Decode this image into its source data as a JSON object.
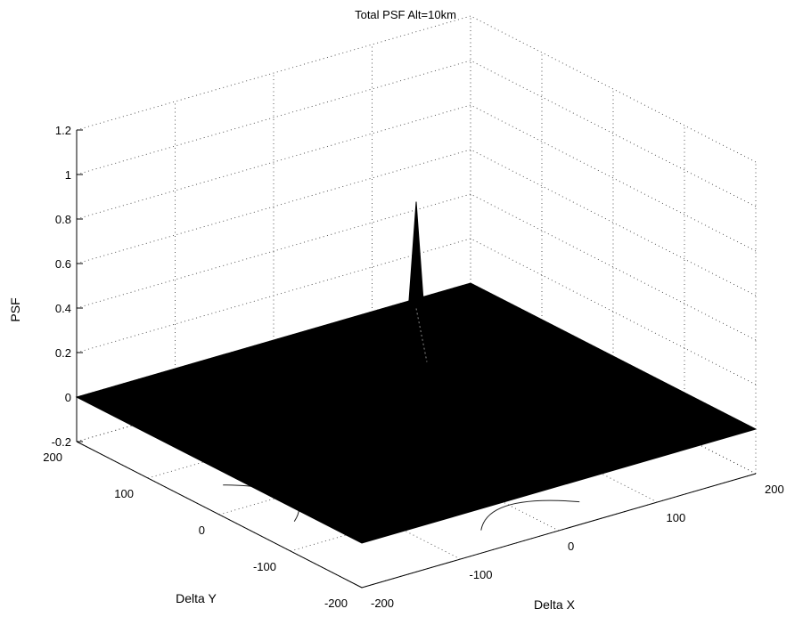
{
  "chart_data": {
    "type": "surface",
    "title": "Total PSF Alt=10km",
    "xlabel": "Delta X",
    "ylabel": "Delta Y",
    "zlabel": "PSF",
    "xlim": [
      -200,
      200
    ],
    "ylim": [
      -200,
      200
    ],
    "zlim": [
      -0.2,
      1.2
    ],
    "x_ticks": [
      "-200",
      "-100",
      "0",
      "100",
      "200"
    ],
    "y_ticks": [
      "-200",
      "-100",
      "0",
      "100",
      "200"
    ],
    "z_ticks": [
      "-0.2",
      "0",
      "0.2",
      "0.4",
      "0.6",
      "0.8",
      "1",
      "1.2"
    ],
    "grid": true,
    "surface_level": 0,
    "peak": {
      "x": 0,
      "y": 0,
      "z": 0.95
    },
    "contour_regions": [
      {
        "plane": "y = 200",
        "x_range": [
          -50,
          50
        ]
      },
      {
        "plane": "x = -200",
        "y_range": [
          -50,
          50
        ]
      }
    ]
  }
}
